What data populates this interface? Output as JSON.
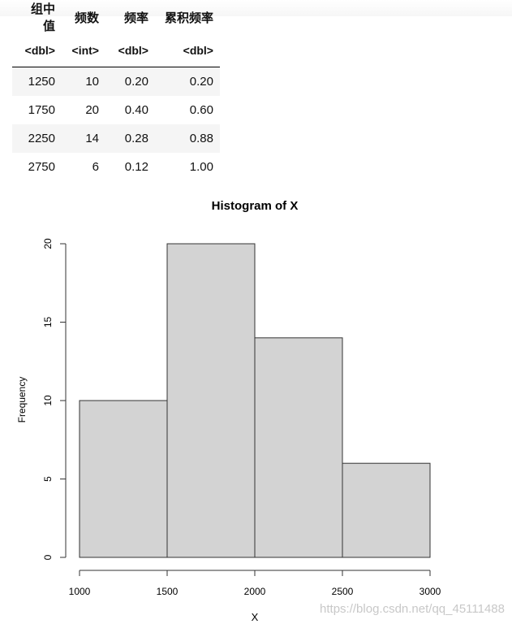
{
  "table": {
    "headers": [
      "组中值",
      "频数",
      "频率",
      "累积频率"
    ],
    "types": [
      "<dbl>",
      "<int>",
      "<dbl>",
      "<dbl>"
    ],
    "rows": [
      [
        "1250",
        "10",
        "0.20",
        "0.20"
      ],
      [
        "1750",
        "20",
        "0.40",
        "0.60"
      ],
      [
        "2250",
        "14",
        "0.28",
        "0.88"
      ],
      [
        "2750",
        "6",
        "0.12",
        "1.00"
      ]
    ]
  },
  "chart_data": {
    "type": "bar",
    "title": "Histogram of X",
    "xlabel": "X",
    "ylabel": "Frequency",
    "bins": [
      [
        1000,
        1500
      ],
      [
        1500,
        2000
      ],
      [
        2000,
        2500
      ],
      [
        2500,
        3000
      ]
    ],
    "values": [
      10,
      20,
      14,
      6
    ],
    "xlim": [
      1000,
      3000
    ],
    "ylim": [
      0,
      20
    ],
    "xticks": [
      1000,
      1500,
      2000,
      2500,
      3000
    ],
    "yticks": [
      0,
      5,
      10,
      15,
      20
    ],
    "bar_color": "#d3d3d3",
    "grid": false
  },
  "watermark": "https://blog.csdn.net/qq_45111488"
}
